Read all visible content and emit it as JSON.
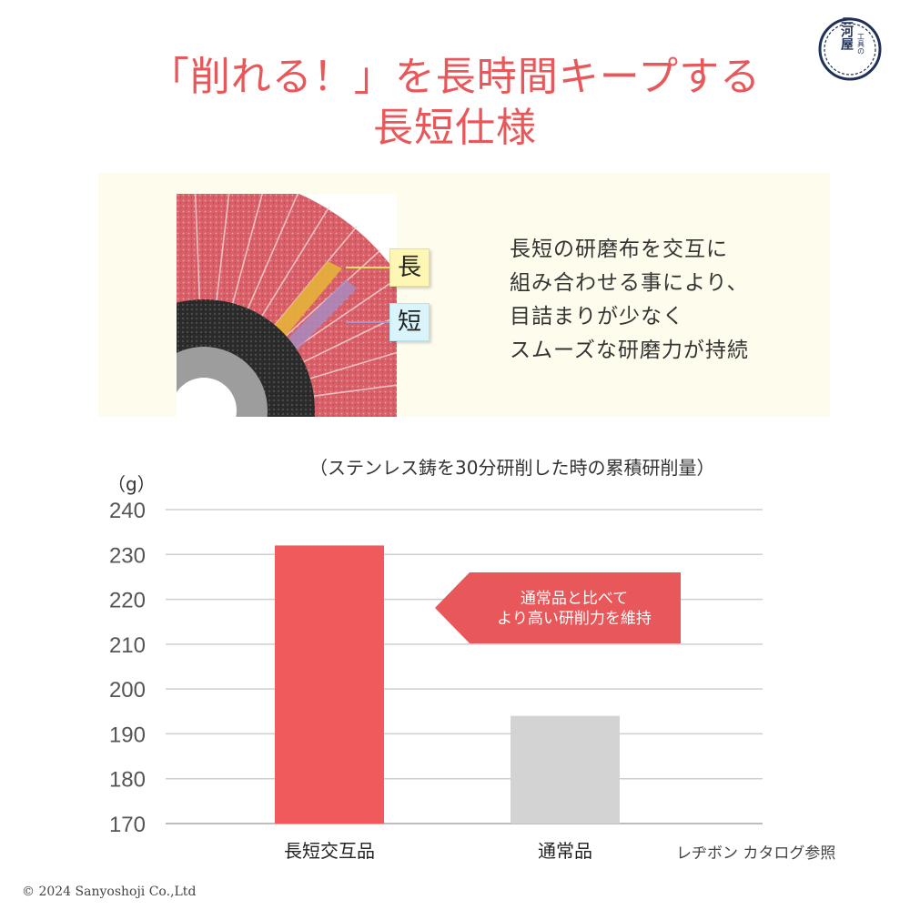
{
  "headline": {
    "line1": "「削れる！」を長時間キープする",
    "line2": "長短仕様"
  },
  "logo": {
    "text": [
      "工具の",
      "三河屋"
    ]
  },
  "feature": {
    "tag_long": "長",
    "tag_short": "短",
    "description": [
      "長短の研磨布を交互に",
      "組み合わせる事により、",
      "目詰まりが少なく",
      "スムーズな研磨力が持続"
    ]
  },
  "chart_note": "（ステンレス鋳を30分研削した時の累積研削量）",
  "callout": {
    "line1": "通常品と比べて",
    "line2": "より高い研削力を維持"
  },
  "reference": "レヂボン カタログ参照",
  "copyright": "© 2024 Sanyoshoji Co.,Ltd",
  "colors": {
    "accent": "#e8585a",
    "bar_primary": "#f05a5c",
    "bar_secondary": "#d3d3d3",
    "gridline": "#cfcfcf"
  },
  "chart_data": {
    "type": "bar",
    "title": "（ステンレス鋳を30分研削した時の累積研削量）",
    "ylabel": "（g）",
    "xlabel": "",
    "categories": [
      "長短交互品",
      "通常品"
    ],
    "values": [
      232,
      194
    ],
    "ylim": [
      170,
      240
    ],
    "yticks": [
      240,
      230,
      220,
      210,
      200,
      190,
      180,
      170
    ],
    "grid": true,
    "legend": "none"
  }
}
